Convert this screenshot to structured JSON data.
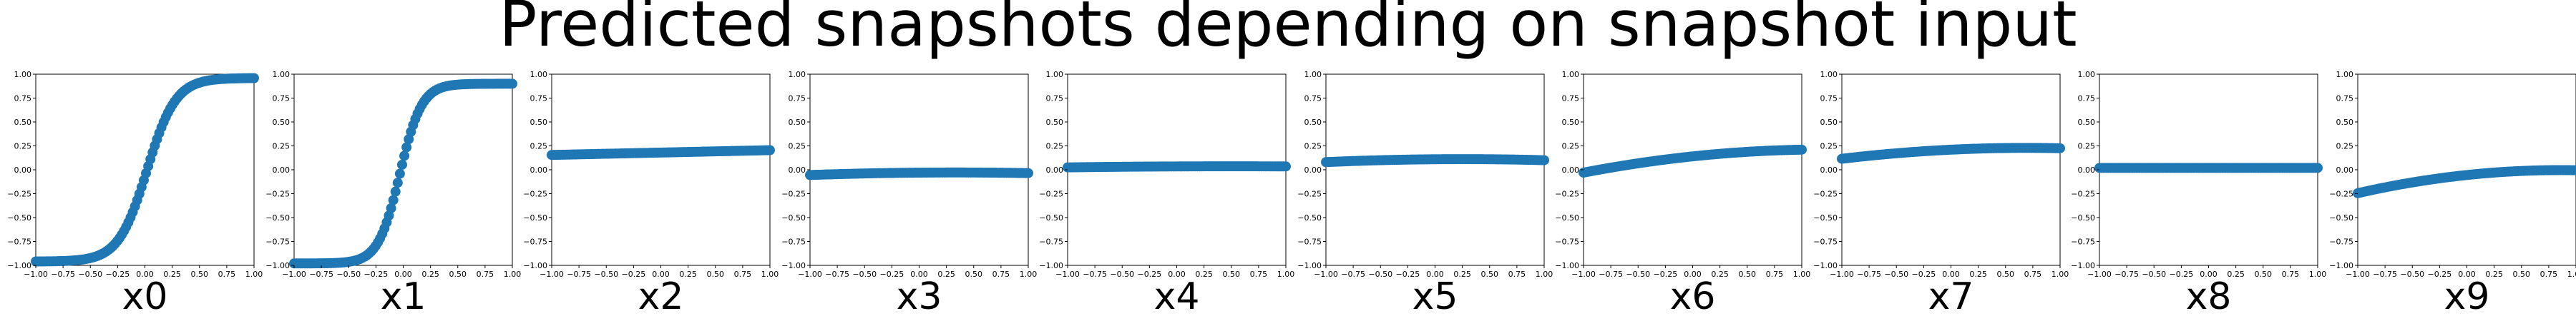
{
  "figure": {
    "title": "Predicted snapshots depending on snapshot input",
    "marker_color": "#1f77b4"
  },
  "chart_data": [
    {
      "type": "scatter",
      "xlabel": "x0",
      "xlim": [
        -1.0,
        1.0
      ],
      "ylim": [
        -1.0,
        1.0
      ],
      "x_ticks": [
        "−1.00",
        "−0.75",
        "−0.50",
        "−0.25",
        "0.00",
        "0.25",
        "0.50",
        "0.75",
        "1.00"
      ],
      "y_ticks": [
        "−1.00",
        "−0.75",
        "−0.50",
        "−0.25",
        "0.00",
        "0.25",
        "0.50",
        "0.75",
        "1.00"
      ],
      "curve": {
        "kind": "tanh",
        "a": 0.0,
        "b": 0.96,
        "k": 3.8,
        "c": 0.02,
        "d": 0.0
      },
      "n_points": 100
    },
    {
      "type": "scatter",
      "xlabel": "x1",
      "xlim": [
        -1.0,
        1.0
      ],
      "ylim": [
        -1.0,
        1.0
      ],
      "x_ticks": [
        "−1.00",
        "−0.75",
        "−0.50",
        "−0.25",
        "0.00",
        "0.25",
        "0.50",
        "0.75",
        "1.00"
      ],
      "y_ticks": [
        "−1.00",
        "−0.75",
        "−0.50",
        "−0.25",
        "0.00",
        "0.25",
        "0.50",
        "0.75",
        "1.00"
      ],
      "curve": {
        "kind": "tanh",
        "a": -0.04,
        "b": 0.94,
        "k": 5.0,
        "c": -0.03,
        "d": 0.0
      },
      "n_points": 100
    },
    {
      "type": "scatter",
      "xlabel": "x2",
      "xlim": [
        -1.0,
        1.0
      ],
      "ylim": [
        -1.0,
        1.0
      ],
      "x_ticks": [
        "−1.00",
        "−0.75",
        "−0.50",
        "−0.25",
        "0.00",
        "0.25",
        "0.50",
        "0.75",
        "1.00"
      ],
      "y_ticks": [
        "−1.00",
        "−0.75",
        "−0.50",
        "−0.25",
        "0.00",
        "0.25",
        "0.50",
        "0.75",
        "1.00"
      ],
      "curve": {
        "kind": "poly",
        "a": 0.18,
        "b": 0.025,
        "c": 0.0,
        "d": 0.0
      },
      "n_points": 100
    },
    {
      "type": "scatter",
      "xlabel": "x3",
      "xlim": [
        -1.0,
        1.0
      ],
      "ylim": [
        -1.0,
        1.0
      ],
      "x_ticks": [
        "−1.00",
        "−0.75",
        "−0.50",
        "−0.25",
        "0.00",
        "0.25",
        "0.50",
        "0.75",
        "1.00"
      ],
      "y_ticks": [
        "−1.00",
        "−0.75",
        "−0.50",
        "−0.25",
        "0.00",
        "0.25",
        "0.50",
        "0.75",
        "1.00"
      ],
      "curve": {
        "kind": "poly",
        "a": -0.03,
        "b": 0.01,
        "c": -0.015,
        "d": 0.0
      },
      "n_points": 100
    },
    {
      "type": "scatter",
      "xlabel": "x4",
      "xlim": [
        -1.0,
        1.0
      ],
      "ylim": [
        -1.0,
        1.0
      ],
      "x_ticks": [
        "−1.00",
        "−0.75",
        "−0.50",
        "−0.25",
        "0.00",
        "0.25",
        "0.50",
        "0.75",
        "1.00"
      ],
      "y_ticks": [
        "−1.00",
        "−0.75",
        "−0.50",
        "−0.25",
        "0.00",
        "0.25",
        "0.50",
        "0.75",
        "1.00"
      ],
      "curve": {
        "kind": "poly",
        "a": 0.035,
        "b": 0.005,
        "c": -0.005,
        "d": 0.0
      },
      "n_points": 100
    },
    {
      "type": "scatter",
      "xlabel": "x5",
      "xlim": [
        -1.0,
        1.0
      ],
      "ylim": [
        -1.0,
        1.0
      ],
      "x_ticks": [
        "−1.00",
        "−0.75",
        "−0.50",
        "−0.25",
        "0.00",
        "0.25",
        "0.50",
        "0.75",
        "1.00"
      ],
      "y_ticks": [
        "−1.00",
        "−0.75",
        "−0.50",
        "−0.25",
        "0.00",
        "0.25",
        "0.50",
        "0.75",
        "1.00"
      ],
      "curve": {
        "kind": "poly",
        "a": 0.11,
        "b": 0.01,
        "c": -0.02,
        "d": 0.0
      },
      "n_points": 100
    },
    {
      "type": "scatter",
      "xlabel": "x6",
      "xlim": [
        -1.0,
        1.0
      ],
      "ylim": [
        -1.0,
        1.0
      ],
      "x_ticks": [
        "−1.00",
        "−0.75",
        "−0.50",
        "−0.25",
        "0.00",
        "0.25",
        "0.50",
        "0.75",
        "1.00"
      ],
      "y_ticks": [
        "−1.00",
        "−0.75",
        "−0.50",
        "−0.25",
        "0.00",
        "0.25",
        "0.50",
        "0.75",
        "1.00"
      ],
      "curve": {
        "kind": "poly",
        "a": 0.14,
        "b": 0.12,
        "c": -0.05,
        "d": 0.0
      },
      "n_points": 100
    },
    {
      "type": "scatter",
      "xlabel": "x7",
      "xlim": [
        -1.0,
        1.0
      ],
      "ylim": [
        -1.0,
        1.0
      ],
      "x_ticks": [
        "−1.00",
        "−0.75",
        "−0.50",
        "−0.25",
        "0.00",
        "0.25",
        "0.50",
        "0.75",
        "1.00"
      ],
      "y_ticks": [
        "−1.00",
        "−0.75",
        "−0.50",
        "−0.25",
        "0.00",
        "0.25",
        "0.50",
        "0.75",
        "1.00"
      ],
      "curve": {
        "kind": "poly",
        "a": 0.21,
        "b": 0.055,
        "c": -0.04,
        "d": 0.0
      },
      "n_points": 100
    },
    {
      "type": "scatter",
      "xlabel": "x8",
      "xlim": [
        -1.0,
        1.0
      ],
      "ylim": [
        -1.0,
        1.0
      ],
      "x_ticks": [
        "−1.00",
        "−0.75",
        "−0.50",
        "−0.25",
        "0.00",
        "0.25",
        "0.50",
        "0.75",
        "1.00"
      ],
      "y_ticks": [
        "−1.00",
        "−0.75",
        "−0.50",
        "−0.25",
        "0.00",
        "0.25",
        "0.50",
        "0.75",
        "1.00"
      ],
      "curve": {
        "kind": "poly",
        "a": 0.02,
        "b": 0.0,
        "c": 0.0,
        "d": 0.0
      },
      "n_points": 100
    },
    {
      "type": "scatter",
      "xlabel": "x9",
      "xlim": [
        -1.0,
        1.0
      ],
      "ylim": [
        -1.0,
        1.0
      ],
      "x_ticks": [
        "−1.00",
        "−0.75",
        "−0.50",
        "−0.25",
        "0.00",
        "0.25",
        "0.50",
        "0.75",
        "1.00"
      ],
      "y_ticks": [
        "−1.00",
        "−0.75",
        "−0.50",
        "−0.25",
        "0.00",
        "0.25",
        "0.50",
        "0.75",
        "1.00"
      ],
      "curve": {
        "kind": "poly",
        "a": -0.055,
        "b": 0.12,
        "c": -0.07,
        "d": 0.0
      },
      "n_points": 100
    }
  ]
}
